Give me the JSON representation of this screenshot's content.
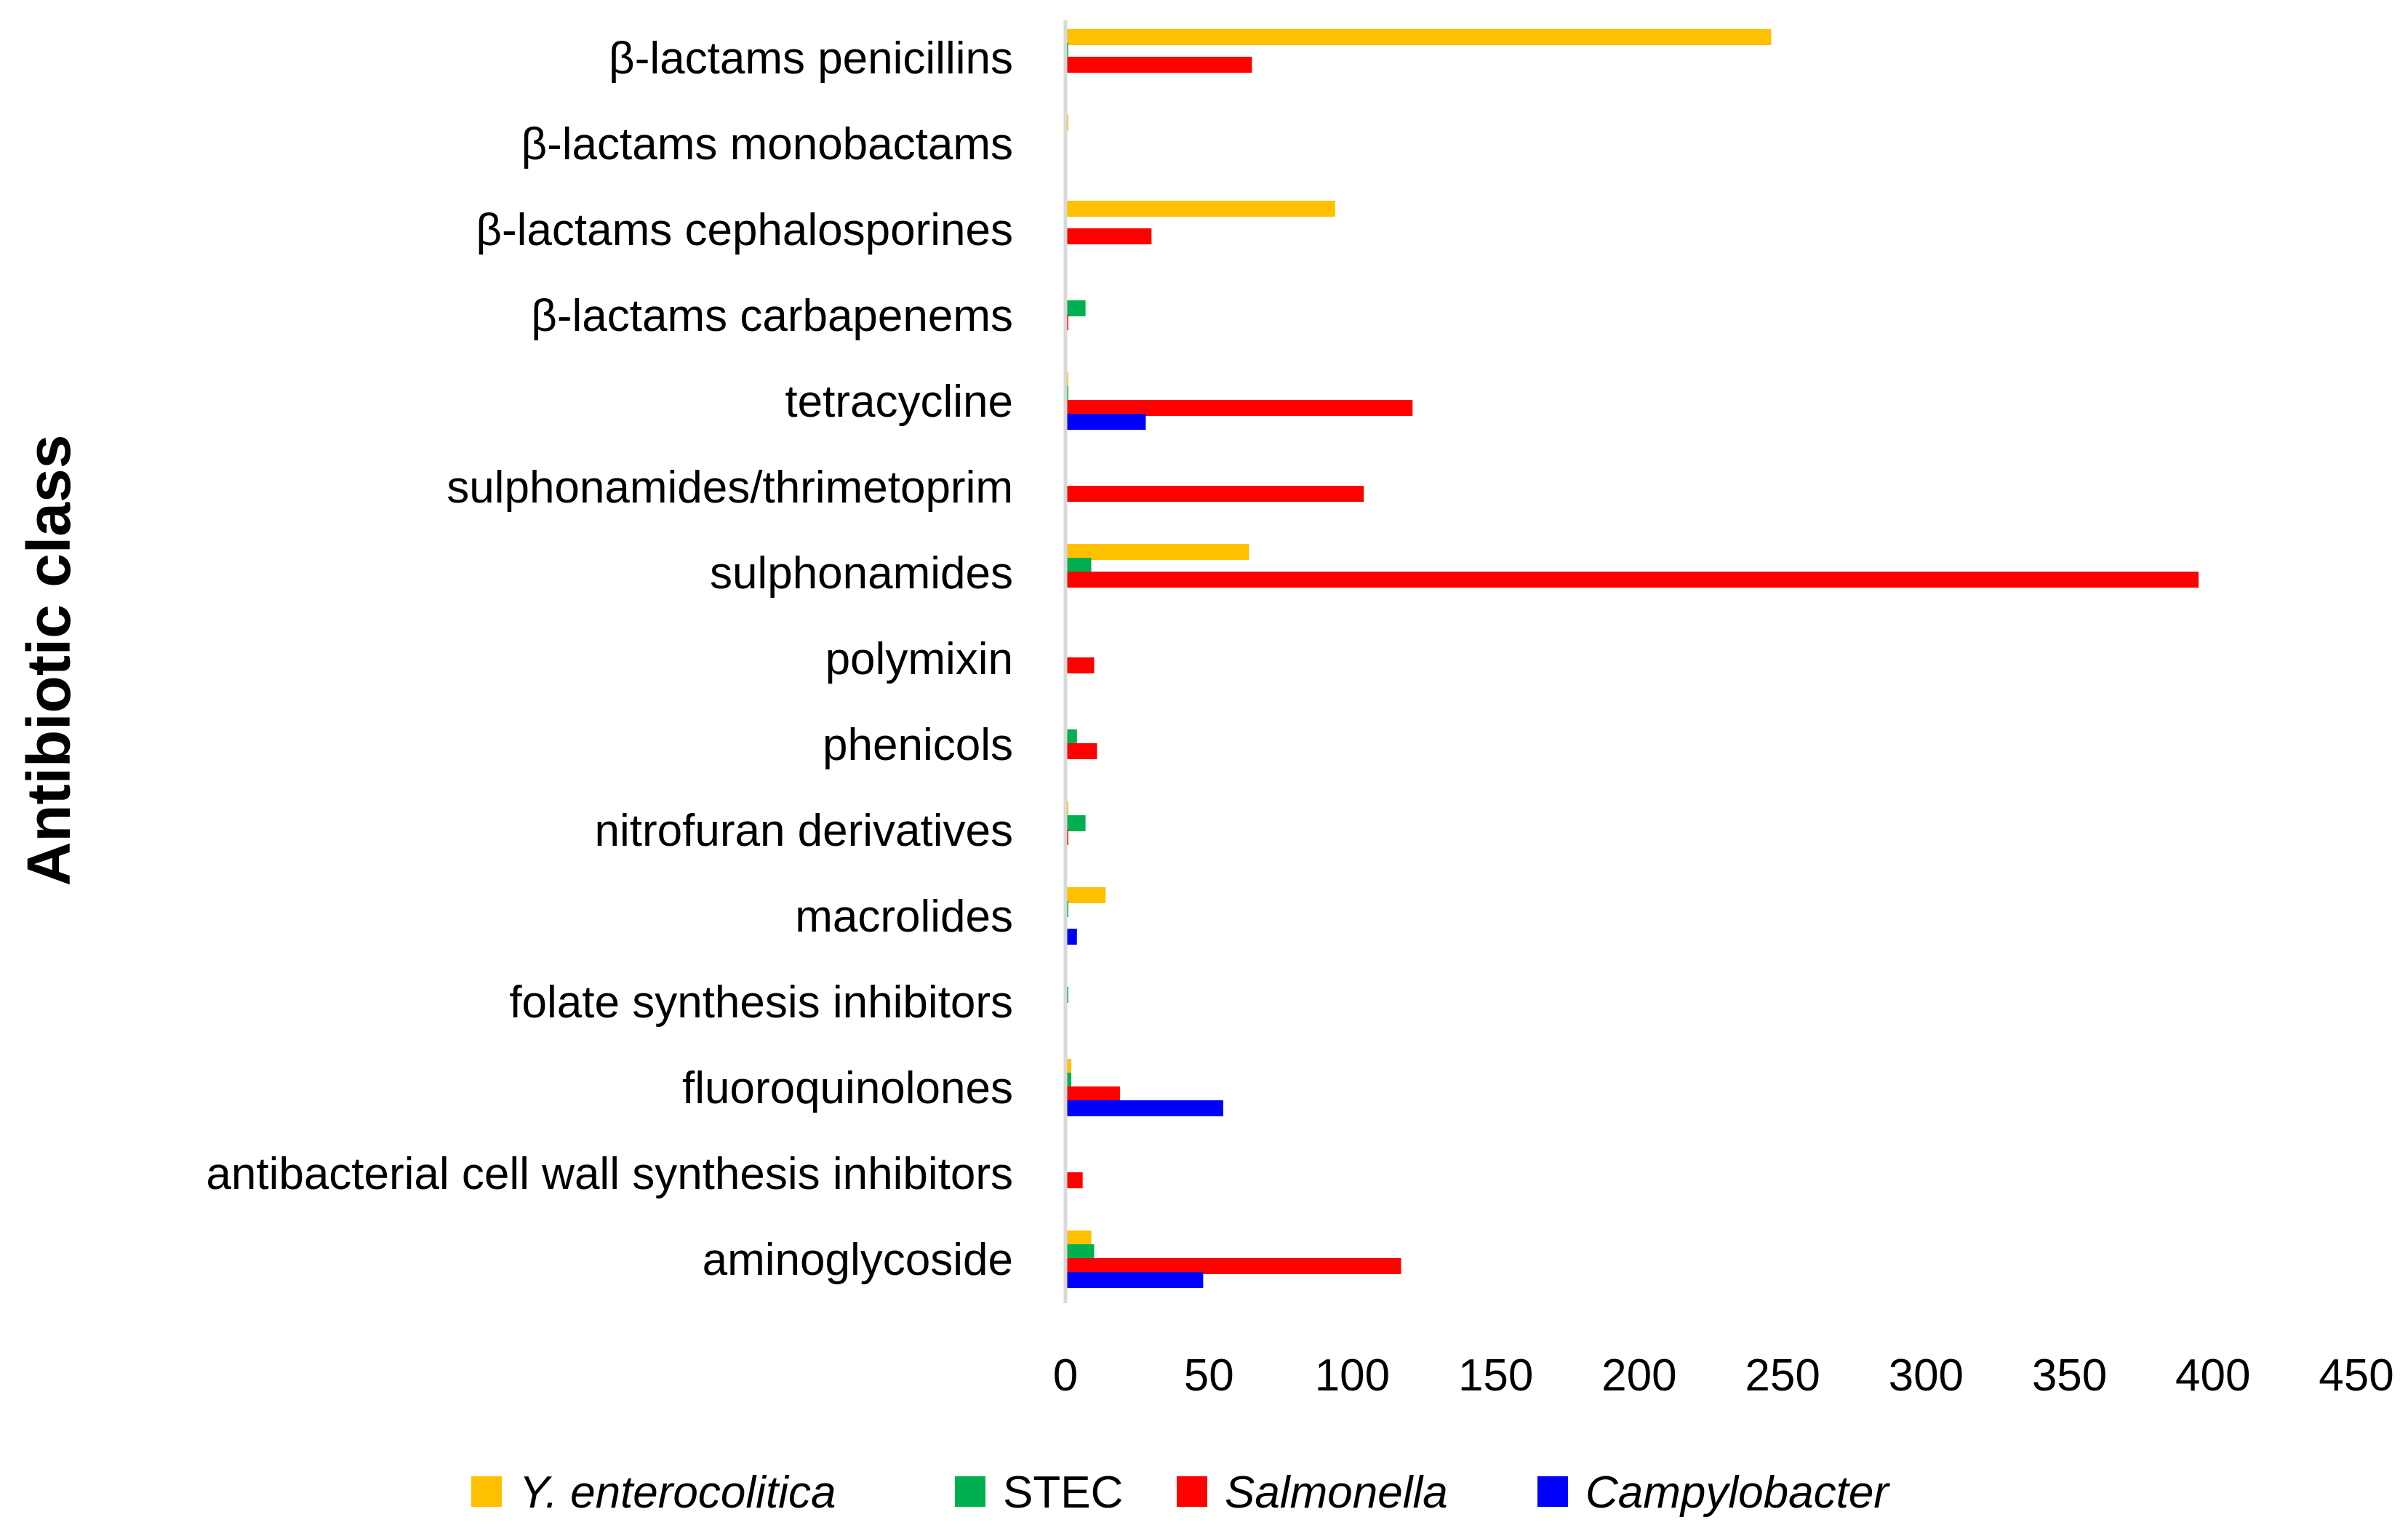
{
  "chart_data": {
    "type": "bar",
    "orientation": "horizontal",
    "title": "",
    "xlabel": "",
    "ylabel": "Antibiotic class",
    "xlim": [
      0,
      450
    ],
    "x_ticks": [
      "0",
      "50",
      "100",
      "150",
      "200",
      "250",
      "300",
      "350",
      "400",
      "450"
    ],
    "grid": false,
    "legend_position": "bottom",
    "categories": [
      "β-lactams penicillins",
      "β-lactams monobactams",
      "β-lactams cephalosporines",
      "β-lactams carbapenems",
      "tetracycline",
      "sulphonamides/thrimetoprim",
      "sulphonamides",
      "polymixin",
      "phenicols",
      "nitrofuran derivatives",
      "macrolides",
      "folate synthesis inhibitors",
      "fluoroquinolones",
      "antibacterial cell wall synthesis inhibitors",
      "aminoglycoside"
    ],
    "series": [
      {
        "name": "Y. enterocolitica",
        "italic": true,
        "color": "#FFC000",
        "values": [
          246,
          1,
          94,
          0,
          1,
          0,
          64,
          0,
          0,
          1,
          14,
          0,
          2,
          0,
          9
        ]
      },
      {
        "name": "STEC",
        "italic": false,
        "color": "#00B050",
        "values": [
          1,
          0,
          0,
          7,
          1,
          0,
          9,
          0,
          4,
          7,
          1,
          1,
          2,
          0,
          10
        ]
      },
      {
        "name": "Salmonella",
        "italic": true,
        "color": "#FF0000",
        "values": [
          65,
          0,
          30,
          1,
          121,
          104,
          395,
          10,
          11,
          1,
          0,
          0,
          19,
          6,
          117
        ]
      },
      {
        "name": "Campylobacter",
        "italic": true,
        "color": "#0000FF",
        "values": [
          0,
          0,
          0,
          0,
          28,
          0,
          0,
          0,
          0,
          0,
          4,
          0,
          55,
          0,
          48
        ]
      }
    ]
  }
}
